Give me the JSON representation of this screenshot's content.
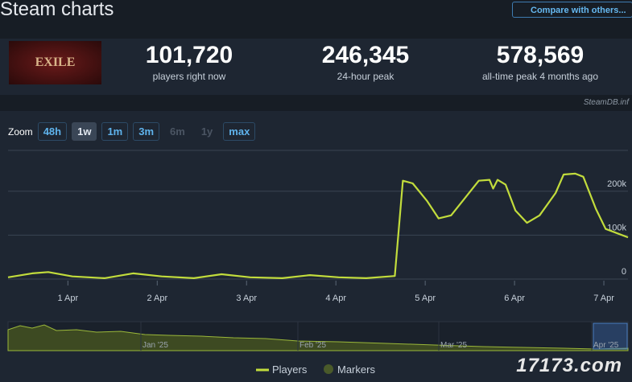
{
  "header": {
    "title": "Steam charts",
    "compare_button": "Compare with others..."
  },
  "stats": [
    {
      "value": "101,720",
      "label": "players right now"
    },
    {
      "value": "246,345",
      "label": "24-hour peak"
    },
    {
      "value": "578,569",
      "label": "all-time peak 4 months ago"
    }
  ],
  "logo_text": "EXILE",
  "credit": "SteamDB.inf",
  "zoom": {
    "label": "Zoom",
    "buttons": [
      "48h",
      "1w",
      "1m",
      "3m",
      "6m",
      "1y",
      "max"
    ]
  },
  "navigator": {
    "labels": [
      "Jan '25",
      "Feb '25",
      "Mar '25",
      "Apr '25"
    ]
  },
  "watermark": "17173.com",
  "chart_data": {
    "type": "line",
    "x": [
      0.33,
      0.6,
      0.78,
      1.05,
      1.41,
      1.73,
      2.05,
      2.41,
      2.72,
      3.04,
      3.4,
      3.71,
      4.03,
      4.34,
      4.66,
      4.75,
      4.86,
      5.02,
      5.15,
      5.29,
      5.42,
      5.6,
      5.72,
      5.76,
      5.81,
      5.9,
      6.01,
      6.14,
      6.28,
      6.46,
      6.55,
      6.68,
      6.77,
      6.91,
      7.02,
      7.14,
      7.27
    ],
    "series": [
      {
        "name": "Players",
        "color": "#c2dc3c",
        "values": [
          4000,
          13000,
          16000,
          6000,
          2000,
          13000,
          6000,
          2000,
          11000,
          4000,
          2000,
          9000,
          4000,
          2000,
          7000,
          224000,
          218000,
          178000,
          138000,
          145000,
          178000,
          224000,
          226000,
          206000,
          226000,
          215000,
          156000,
          128000,
          145000,
          196000,
          238000,
          240000,
          233000,
          160000,
          114000,
          105000,
          95000
        ]
      }
    ],
    "markers_label": "Markers",
    "markers_color": "#4a5a2a",
    "xlim": [
      0.33,
      7.27
    ],
    "xticks": [
      {
        "value": 1,
        "label": "1 Apr"
      },
      {
        "value": 2,
        "label": "2 Apr"
      },
      {
        "value": 3,
        "label": "3 Apr"
      },
      {
        "value": 4,
        "label": "4 Apr"
      },
      {
        "value": 5,
        "label": "5 Apr"
      },
      {
        "value": 6,
        "label": "6 Apr"
      },
      {
        "value": 7,
        "label": "7 Apr"
      }
    ],
    "ylim": [
      0,
      293000
    ],
    "yticks": [
      0,
      {
        "value": 100000,
        "label": "100k"
      },
      {
        "value": 200000,
        "label": "200k"
      }
    ],
    "grid": true
  }
}
